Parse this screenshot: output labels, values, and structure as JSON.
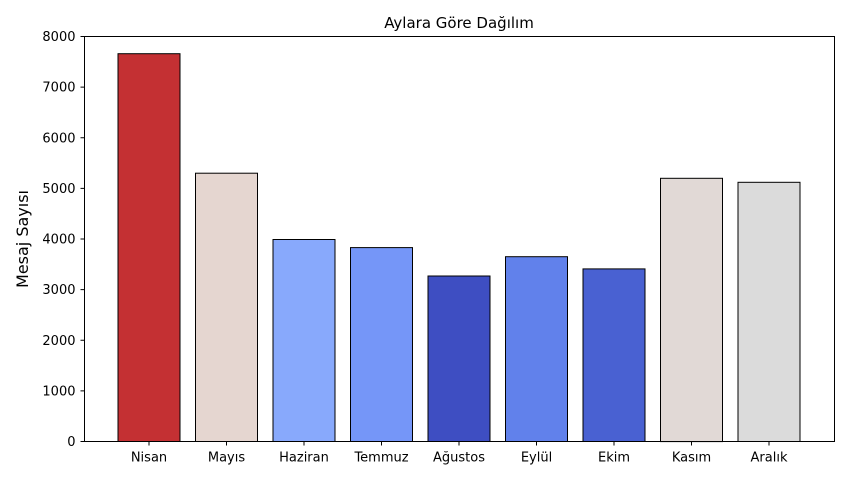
{
  "chart_data": {
    "type": "bar",
    "title": "Aylara Göre Dağılım",
    "xlabel": "",
    "ylabel": "Mesaj Sayısı",
    "categories": [
      "Nisan",
      "Mayıs",
      "Haziran",
      "Temmuz",
      "Ağustos",
      "Eylül",
      "Ekim",
      "Kasım",
      "Aralık"
    ],
    "values": [
      7660,
      5300,
      3990,
      3830,
      3270,
      3650,
      3410,
      5200,
      5120
    ],
    "colors": [
      "#c43033",
      "#e5d6d0",
      "#88a9fc",
      "#7596f8",
      "#3e4ec2",
      "#6181eb",
      "#4961d2",
      "#e1d9d6",
      "#dbdbdb"
    ],
    "ylim": [
      0,
      8000
    ],
    "yticks": [
      0,
      1000,
      2000,
      3000,
      4000,
      5000,
      6000,
      7000,
      8000
    ],
    "grid": false,
    "legend": "none"
  }
}
